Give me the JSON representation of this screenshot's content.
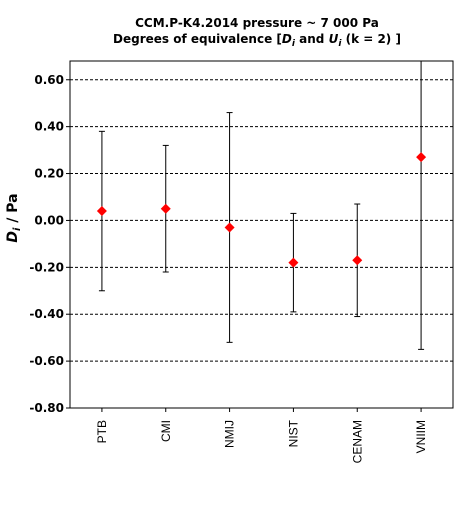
{
  "chart_data": {
    "type": "scatter",
    "title": "CCM.P-K4.2014  pressure ~ 7 000 Pa",
    "subtitle_prefix": "Degrees of equivalence [",
    "subtitle_D": "D",
    "subtitle_and": " and ",
    "subtitle_U": "U",
    "subtitle_sub": "i",
    "subtitle_suffix": " (k = 2) ]",
    "ylabel_main": "D",
    "ylabel_sub": "i",
    "ylabel_unit": " / Pa",
    "xlabel": "",
    "ylim": [
      -0.8,
      0.68
    ],
    "yticks": [
      0.6,
      0.4,
      0.2,
      0.0,
      -0.2,
      -0.4,
      -0.6,
      -0.8
    ],
    "ytick_labels": [
      "0.60",
      "0.40",
      "0.20",
      "0.00",
      "-0.20",
      "-0.40",
      "-0.60",
      "-0.80"
    ],
    "categories": [
      "PTB",
      "CMI",
      "NMIJ",
      "NIST",
      "CENAM",
      "VNIIM"
    ],
    "values": [
      0.04,
      0.05,
      -0.03,
      -0.18,
      -0.17,
      0.27
    ],
    "uncertainty": [
      0.34,
      0.27,
      0.49,
      0.21,
      0.24,
      0.82
    ],
    "gridlines": "horizontal-dashed",
    "marker_color": "#ff0000",
    "errorbar_color": "#000000"
  }
}
